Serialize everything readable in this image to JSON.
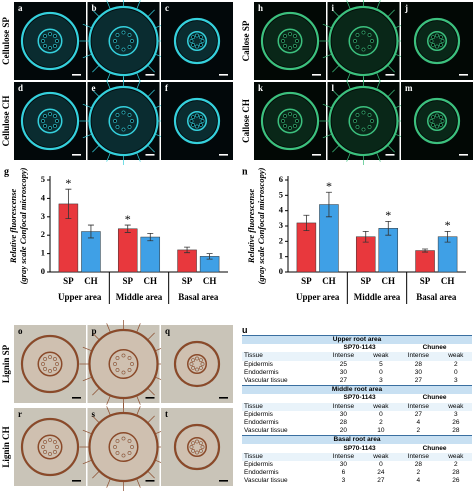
{
  "micrographs": [
    {
      "row_label": "Cellulose SP",
      "panels": [
        "a",
        "b",
        "c"
      ],
      "style": "cellulose"
    },
    {
      "row_label": "Cellulose CH",
      "panels": [
        "d",
        "e",
        "f"
      ],
      "style": "cellulose"
    },
    {
      "row_label": "Callose SP",
      "panels": [
        "h",
        "i",
        "j"
      ],
      "style": "callose"
    },
    {
      "row_label": "Callose CH",
      "panels": [
        "k",
        "l",
        "m"
      ],
      "style": "callose"
    },
    {
      "row_label": "Lignin SP",
      "panels": [
        "o",
        "p",
        "q"
      ],
      "style": "lignin"
    },
    {
      "row_label": "Lignin CH",
      "panels": [
        "r",
        "s",
        "t"
      ],
      "style": "lignin"
    }
  ],
  "chart_data": [
    {
      "type": "bar",
      "label": "g",
      "ylabel": [
        "Relative fluorescense",
        "(gray scale Confocal microscopy)"
      ],
      "categories": [
        "Upper area",
        "Middle area",
        "Basal area"
      ],
      "series": [
        {
          "name": "SP",
          "color": "#e8383d",
          "values": [
            3.7,
            2.35,
            1.2
          ],
          "errors": [
            0.8,
            0.2,
            0.15
          ],
          "annotations": [
            "*",
            "*",
            null
          ]
        },
        {
          "name": "CH",
          "color": "#3fa0e6",
          "values": [
            2.2,
            1.9,
            0.85
          ],
          "errors": [
            0.35,
            0.2,
            0.15
          ],
          "annotations": [
            null,
            null,
            null
          ]
        }
      ],
      "ylim": [
        0,
        5
      ],
      "yticks": [
        0,
        1,
        2,
        3,
        4,
        5
      ]
    },
    {
      "type": "bar",
      "label": "n",
      "ylabel": [
        "Relative fluorescense",
        "(gray scale Confocal microscopy)"
      ],
      "categories": [
        "Upper area",
        "Middle area",
        "Basal area"
      ],
      "series": [
        {
          "name": "SP",
          "color": "#e8383d",
          "values": [
            3.2,
            2.3,
            1.4
          ],
          "errors": [
            0.5,
            0.35,
            0.1
          ],
          "annotations": [
            null,
            null,
            null
          ]
        },
        {
          "name": "CH",
          "color": "#3fa0e6",
          "values": [
            4.4,
            2.85,
            2.3
          ],
          "errors": [
            0.8,
            0.45,
            0.35
          ],
          "annotations": [
            "*",
            "*",
            "*"
          ]
        }
      ],
      "ylim": [
        0,
        6
      ],
      "yticks": [
        0,
        1,
        2,
        3,
        4,
        5,
        6
      ]
    }
  ],
  "table": {
    "label": "u",
    "groups": [
      "SP70-1143",
      "Chunee"
    ],
    "columns": [
      "Tissue",
      "Intense",
      "weak",
      "Intense",
      "weak"
    ],
    "sections": [
      {
        "title": "Upper root area",
        "rows": [
          [
            "Epidermis",
            25,
            5,
            28,
            2
          ],
          [
            "Endodermis",
            30,
            0,
            30,
            0
          ],
          [
            "Vascular tissue",
            27,
            3,
            27,
            3
          ]
        ]
      },
      {
        "title": "Middle root area",
        "rows": [
          [
            "Epidermis",
            30,
            0,
            27,
            3
          ],
          [
            "Endodermis",
            28,
            2,
            4,
            26
          ],
          [
            "Vascular tissue",
            20,
            10,
            2,
            28
          ]
        ]
      },
      {
        "title": "Basal root area",
        "rows": [
          [
            "Epidermis",
            30,
            0,
            28,
            2
          ],
          [
            "Endodermis",
            6,
            24,
            2,
            28
          ],
          [
            "Vascular tissue",
            3,
            27,
            4,
            26
          ]
        ]
      }
    ]
  }
}
